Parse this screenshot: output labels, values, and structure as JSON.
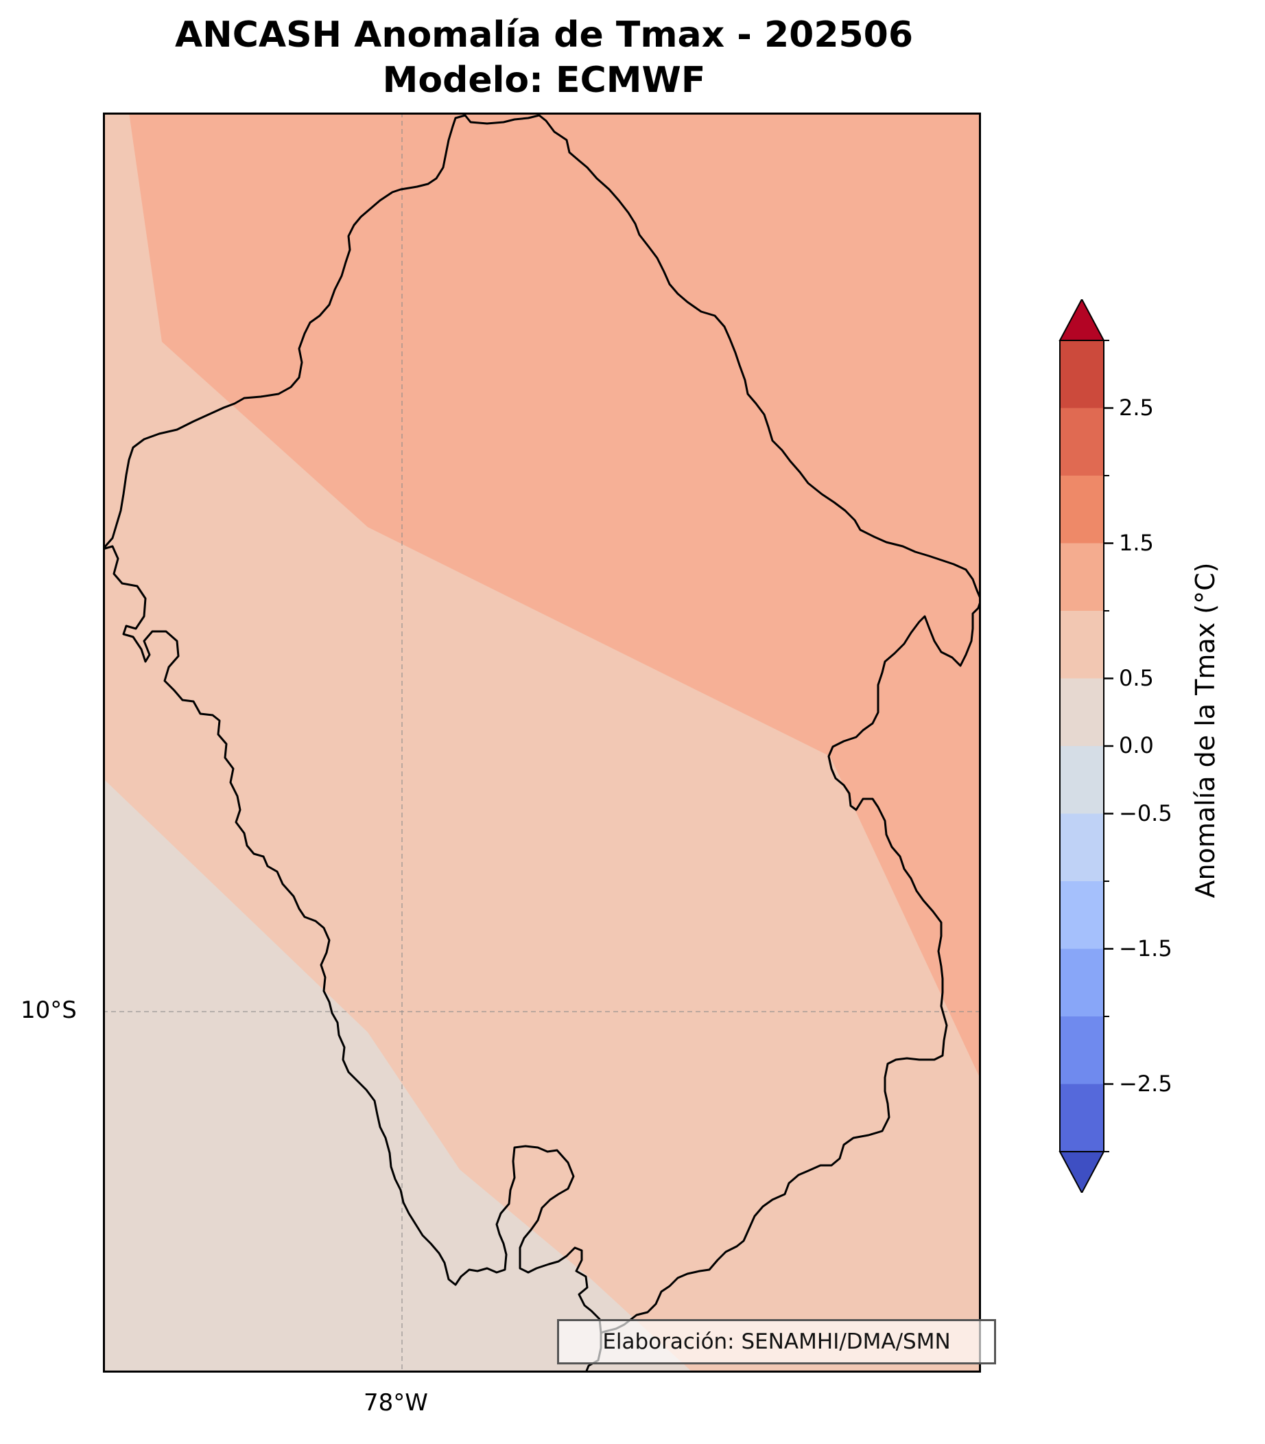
{
  "title_line1": "ANCASH Anomalía de Tmax - 202506",
  "title_line2": "Modelo: ECMWF",
  "map": {
    "lat_tick_label": "10°S",
    "lon_tick_label": "78°W",
    "credit": "Elaboración: SENAMHI/DMA/SMN",
    "shading_colors": {
      "low": "#e5d8d0",
      "mid": "#f2c8b4",
      "high": "#f6b096"
    },
    "border_color": "#000000"
  },
  "colorbar": {
    "label": "Anomalía de la Tmax (°C)",
    "bins": [
      -3.0,
      -2.5,
      -2.0,
      -1.5,
      -1.0,
      -0.5,
      0.0,
      0.5,
      1.0,
      1.5,
      2.0,
      2.5,
      3.0
    ],
    "colors": [
      "#3e4fc3",
      "#5569db",
      "#6f8aee",
      "#88a6f8",
      "#a5c0fc",
      "#bfd2f6",
      "#d5dde6",
      "#e6d8d0",
      "#f2c7b2",
      "#f4ac8f",
      "#ee8968",
      "#e06a52",
      "#cc4a3c",
      "#b30424"
    ],
    "tick_values": [
      2.5,
      1.5,
      0.5,
      0.0,
      -0.5,
      -1.5,
      -2.5
    ],
    "tick_labels": [
      "2.5",
      "1.5",
      "0.5",
      "0.0",
      "−0.5",
      "−1.5",
      "−2.5"
    ],
    "extend": "both"
  }
}
